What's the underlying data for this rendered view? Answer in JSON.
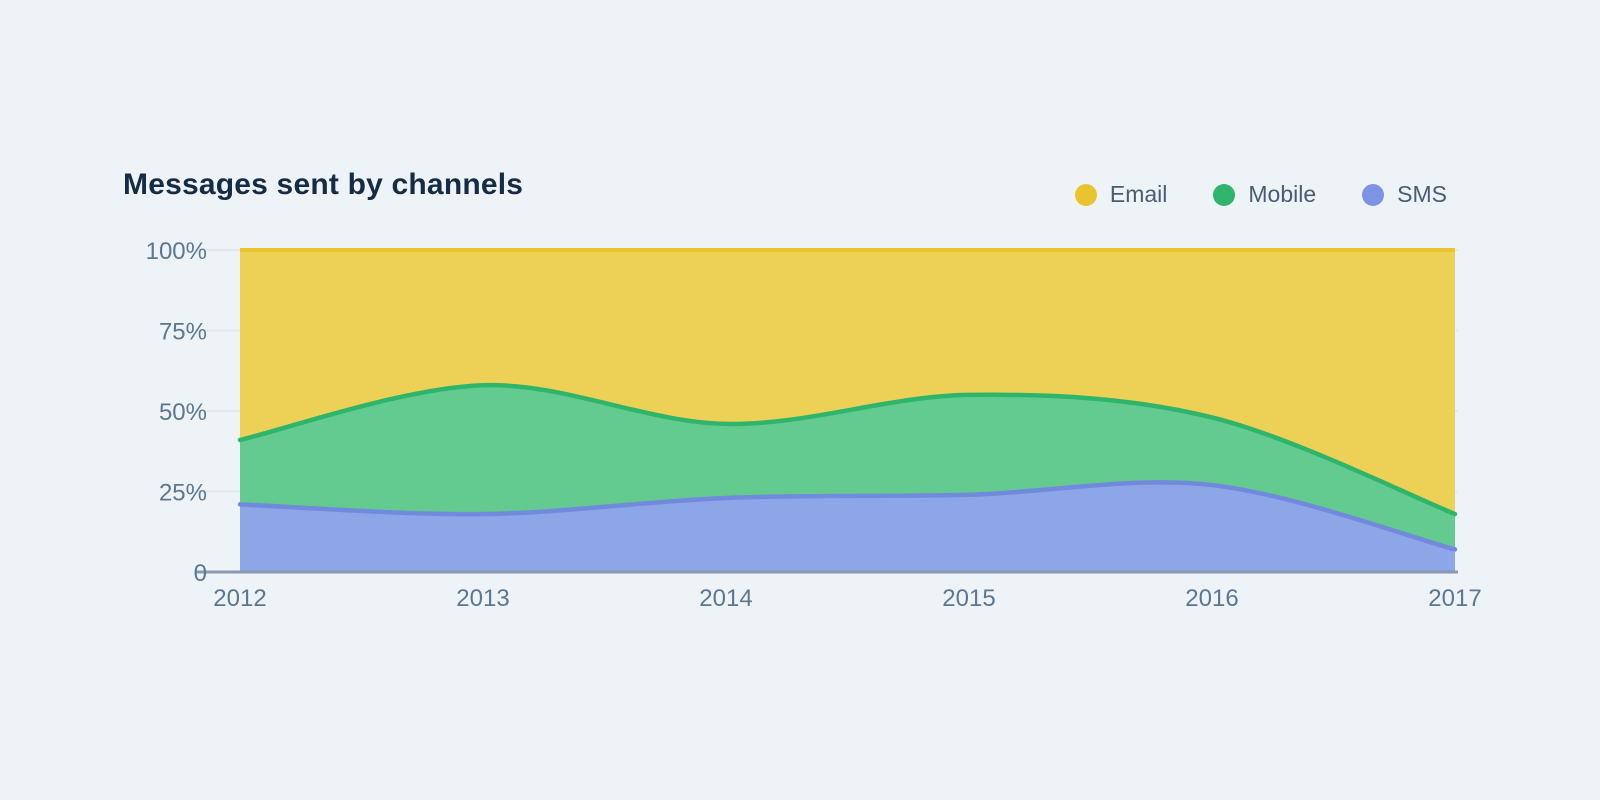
{
  "page": {
    "background": "#eef3f8"
  },
  "header": {
    "title": "Messages sent by channels"
  },
  "legend": {
    "items": [
      {
        "label": "Email",
        "color": "#eac42e"
      },
      {
        "label": "Mobile",
        "color": "#2fb56b"
      },
      {
        "label": "SMS",
        "color": "#7d94e4"
      }
    ]
  },
  "chart_data": {
    "type": "area",
    "stacked": true,
    "normalized": "percent",
    "smooth": true,
    "title": "Messages sent by channels",
    "xlabel": "",
    "ylabel": "",
    "ylim": [
      0,
      100
    ],
    "grid": true,
    "legend_position": "top-right",
    "categories": [
      "2012",
      "2013",
      "2014",
      "2015",
      "2016",
      "2017"
    ],
    "series": [
      {
        "name": "SMS",
        "values": [
          21,
          18,
          23,
          24,
          27,
          7
        ],
        "fill": "#8da6e8",
        "stroke": "#7389de"
      },
      {
        "name": "Mobile",
        "values": [
          20,
          40,
          23,
          31,
          21,
          11
        ],
        "fill": "#63cb8f",
        "stroke": "#2fb56b"
      },
      {
        "name": "Email",
        "values": [
          59,
          42,
          54,
          45,
          52,
          82
        ],
        "fill": "#edd157",
        "stroke": "#e9c42e"
      }
    ],
    "stack_tops_percent": {
      "sms_top": [
        21,
        18,
        23,
        24,
        27,
        7
      ],
      "mobile_top": [
        41,
        58,
        46,
        55,
        48,
        18
      ],
      "email_top": [
        100,
        100,
        100,
        100,
        100,
        100
      ]
    },
    "y_ticks": [
      {
        "value": 0,
        "label": "0"
      },
      {
        "value": 25,
        "label": "25%"
      },
      {
        "value": 50,
        "label": "50%"
      },
      {
        "value": 75,
        "label": "75%"
      },
      {
        "value": 100,
        "label": "100%"
      }
    ],
    "colors": {
      "gridline": "#e2e8ef",
      "axis_line": "#8b9aae",
      "tick_text": "#5b7792"
    }
  }
}
